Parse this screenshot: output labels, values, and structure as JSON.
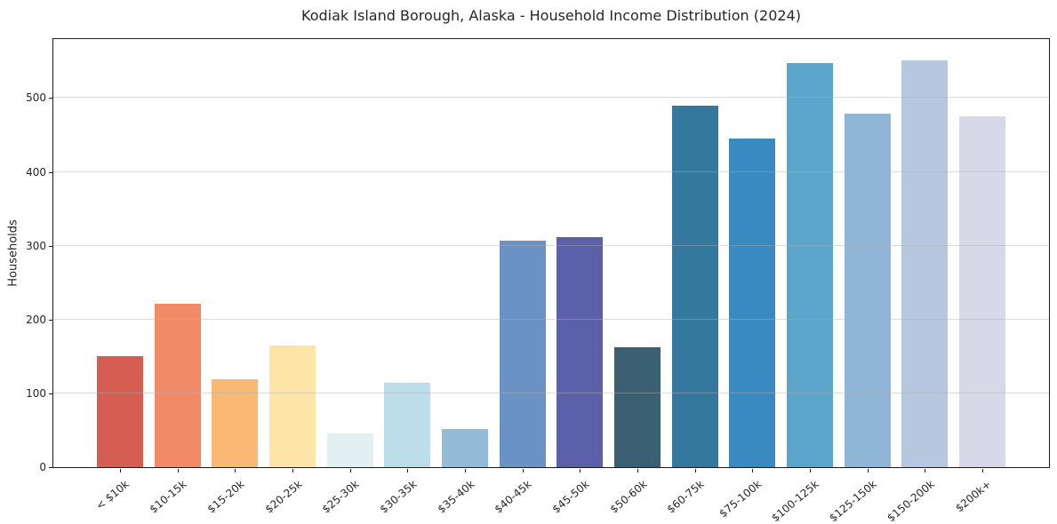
{
  "chart_data": {
    "type": "bar",
    "title": "Kodiak Island Borough, Alaska - Household Income Distribution (2024)",
    "xlabel": "",
    "ylabel": "Households",
    "categories": [
      "< $10k",
      "$10-15k",
      "$15-20k",
      "$20-25k",
      "$25-30k",
      "$30-35k",
      "$35-40k",
      "$40-45k",
      "$45-50k",
      "$50-60k",
      "$60-75k",
      "$75-100k",
      "$100-125k",
      "$125-150k",
      "$150-200k",
      "$200k+"
    ],
    "values": [
      150,
      222,
      119,
      165,
      46,
      114,
      52,
      307,
      312,
      163,
      490,
      445,
      547,
      479,
      551,
      475
    ],
    "bar_colors": [
      "#d65d52",
      "#f28a68",
      "#f9b873",
      "#fde5a7",
      "#e3f0f2",
      "#bcdde9",
      "#92bcd8",
      "#6a92c5",
      "#5b60a8",
      "#3b6073",
      "#35789e",
      "#3a8ac2",
      "#5ba4ca",
      "#8fb6d6",
      "#b7c7e0",
      "#d8d9e8"
    ],
    "ylim": [
      0,
      580
    ],
    "yticks": [
      0,
      100,
      200,
      300,
      400,
      500
    ],
    "grid": "horizontal-above-bars",
    "legend": "none",
    "background": "#ffffff",
    "x_tick_rotation_deg": -40
  }
}
